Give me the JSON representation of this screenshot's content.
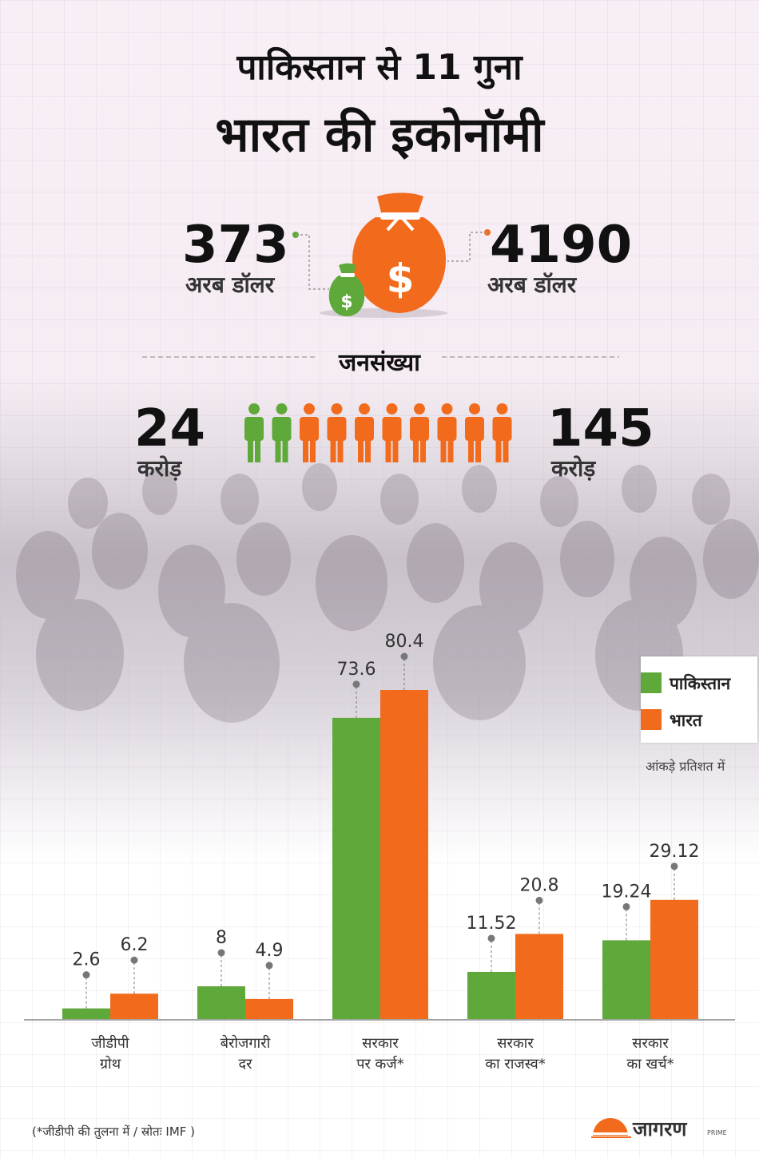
{
  "title_line1": "पाकिस्तान से 11 गुना",
  "title_line2": "भारत की इकोनॉमी",
  "gdp": {
    "pakistan_value": "373",
    "india_value": "4190",
    "unit": "अरब डॉलर"
  },
  "population": {
    "title": "जनसंख्या",
    "pakistan_value": "24",
    "india_value": "145",
    "unit": "करोड़",
    "icon_counts": {
      "pakistan": 2,
      "india": 8
    }
  },
  "colors": {
    "pakistan": "#5fa83a",
    "india": "#f26b1d",
    "text": "#111111"
  },
  "legend": {
    "pakistan": "पाकिस्तान",
    "india": "भारत"
  },
  "note_percent": "आंकड़े प्रतिशत में",
  "chart_data": {
    "type": "bar",
    "categories": [
      [
        "जीडीपी",
        "ग्रोथ"
      ],
      [
        "बेरोजगारी",
        "दर"
      ],
      [
        "सरकार",
        "पर कर्ज*"
      ],
      [
        "सरकार",
        "का राजस्व*"
      ],
      [
        "सरकार",
        "का खर्च*"
      ]
    ],
    "series": [
      {
        "name": "पाकिस्तान",
        "values": [
          2.6,
          8,
          73.6,
          11.52,
          19.24
        ],
        "labels": [
          "2.6",
          "8",
          "73.6",
          "11.52",
          "19.24"
        ]
      },
      {
        "name": "भारत",
        "values": [
          6.2,
          4.9,
          80.4,
          20.8,
          29.12
        ],
        "labels": [
          "6.2",
          "4.9",
          "80.4",
          "20.8",
          "29.12"
        ]
      }
    ],
    "ylim": [
      0,
      80.4
    ],
    "grid": false,
    "legend_position": "right"
  },
  "footnote": "(*जीडीपी की तुलना में / स्रोतः IMF )",
  "logo": {
    "text": "जागरण",
    "sub": "PRIME"
  }
}
